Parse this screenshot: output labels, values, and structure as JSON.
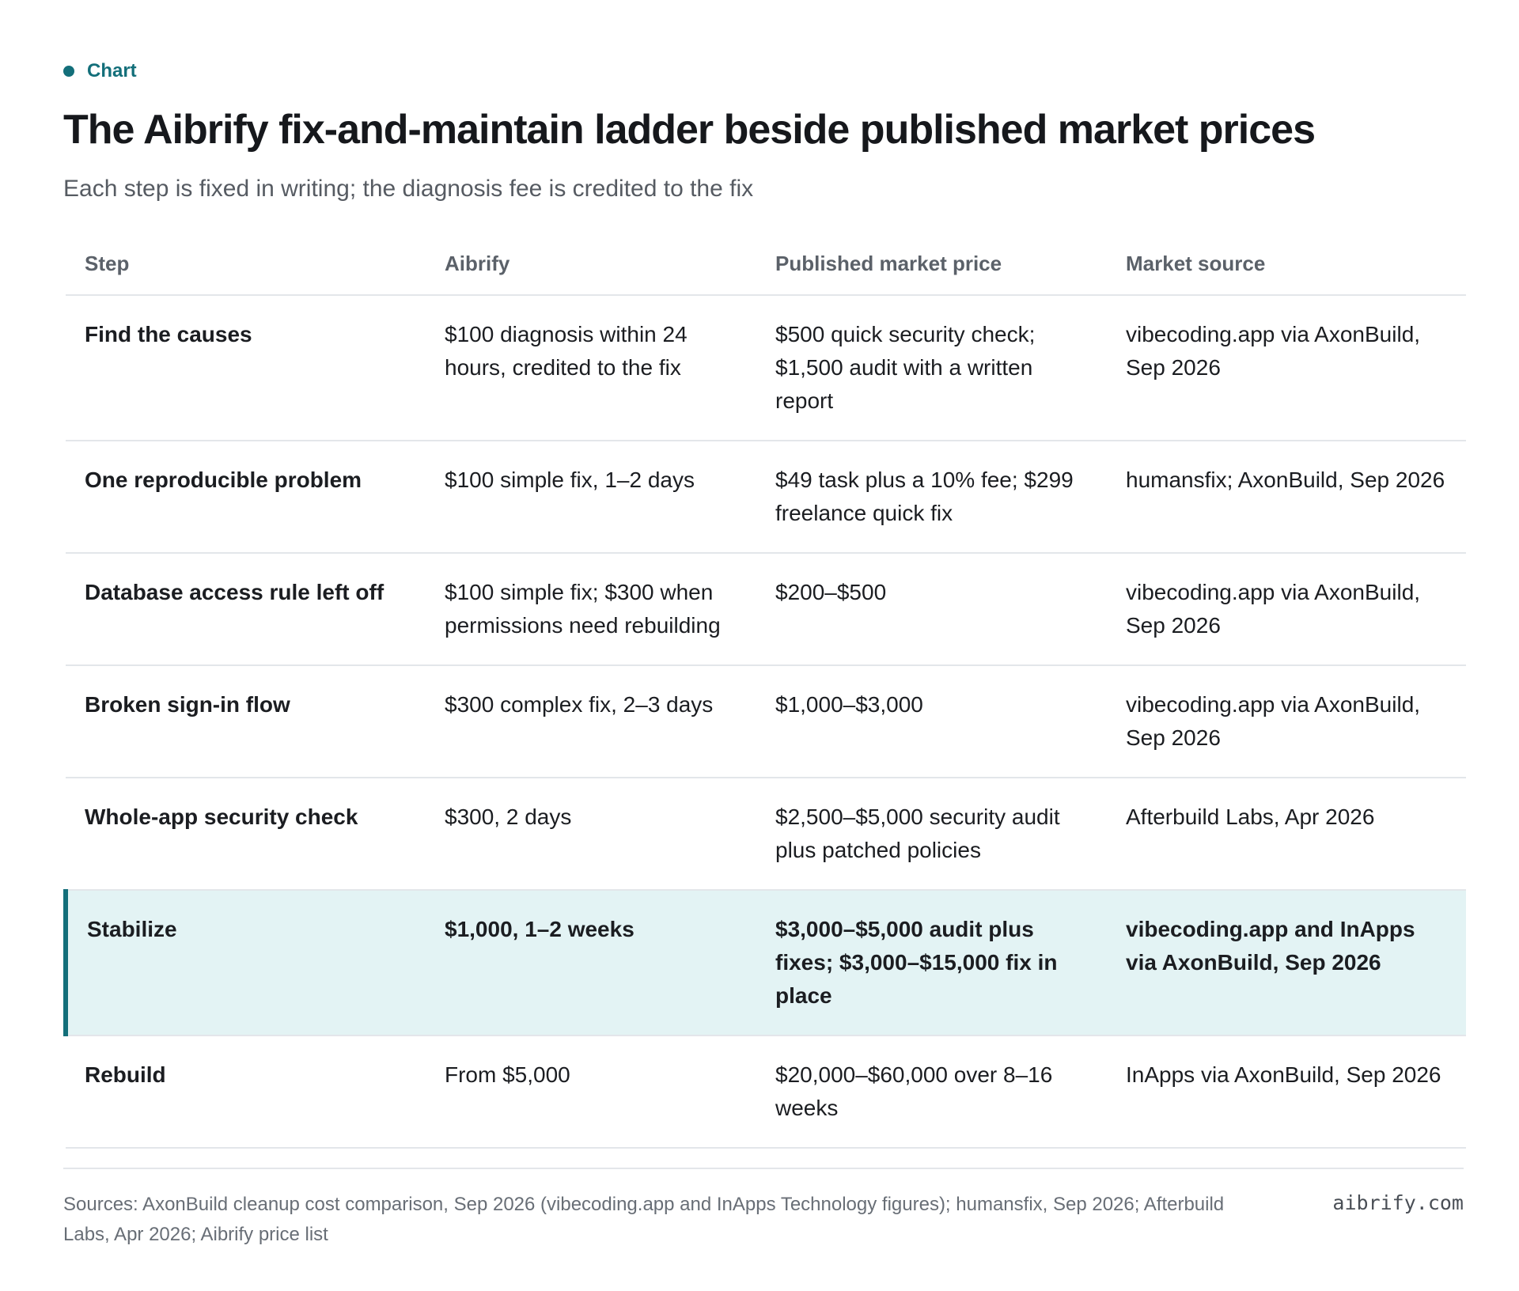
{
  "kicker": "Chart",
  "title": "The Aibrify fix-and-maintain ladder beside published market prices",
  "subtitle": "Each step is fixed in writing; the diagnosis fee is credited to the fix",
  "chart_data": {
    "type": "table",
    "columns": [
      "Step",
      "Aibrify",
      "Published market price",
      "Market source"
    ],
    "rows": [
      [
        "Find the causes",
        "$100 diagnosis within 24 hours, credited to the fix",
        "$500 quick security check; $1,500 audit with a written report",
        "vibecoding.app via AxonBuild, Sep 2026"
      ],
      [
        "One reproducible problem",
        "$100 simple fix, 1–2 days",
        "$49 task plus a 10% fee; $299 freelance quick fix",
        "humansfix; AxonBuild, Sep 2026"
      ],
      [
        "Database access rule left off",
        "$100 simple fix; $300 when permissions need rebuilding",
        "$200–$500",
        "vibecoding.app via AxonBuild, Sep 2026"
      ],
      [
        "Broken sign-in flow",
        "$300 complex fix, 2–3 days",
        "$1,000–$3,000",
        "vibecoding.app via AxonBuild, Sep 2026"
      ],
      [
        "Whole-app security check",
        "$300, 2 days",
        "$2,500–$5,000 security audit plus patched policies",
        "Afterbuild Labs, Apr 2026"
      ],
      [
        "Stabilize",
        "$1,000, 1–2 weeks",
        "$3,000–$5,000 audit plus fixes; $3,000–$15,000 fix in place",
        "vibecoding.app and InApps via AxonBuild, Sep 2026"
      ],
      [
        "Rebuild",
        "From $5,000",
        "$20,000–$60,000 over 8–16 weeks",
        "InApps via AxonBuild, Sep 2026"
      ]
    ],
    "highlighted_row": 5
  },
  "footer": {
    "sources": "Sources: AxonBuild cleanup cost comparison, Sep 2026 (vibecoding.app and InApps Technology figures); humansfix, Sep 2026; Afterbuild Labs, Apr 2026; Aibrify price list",
    "brand": "aibrify.com"
  },
  "colors": {
    "accent": "#136f7a",
    "highlight_bg": "#e3f3f4",
    "rule": "#e3e6ea"
  }
}
